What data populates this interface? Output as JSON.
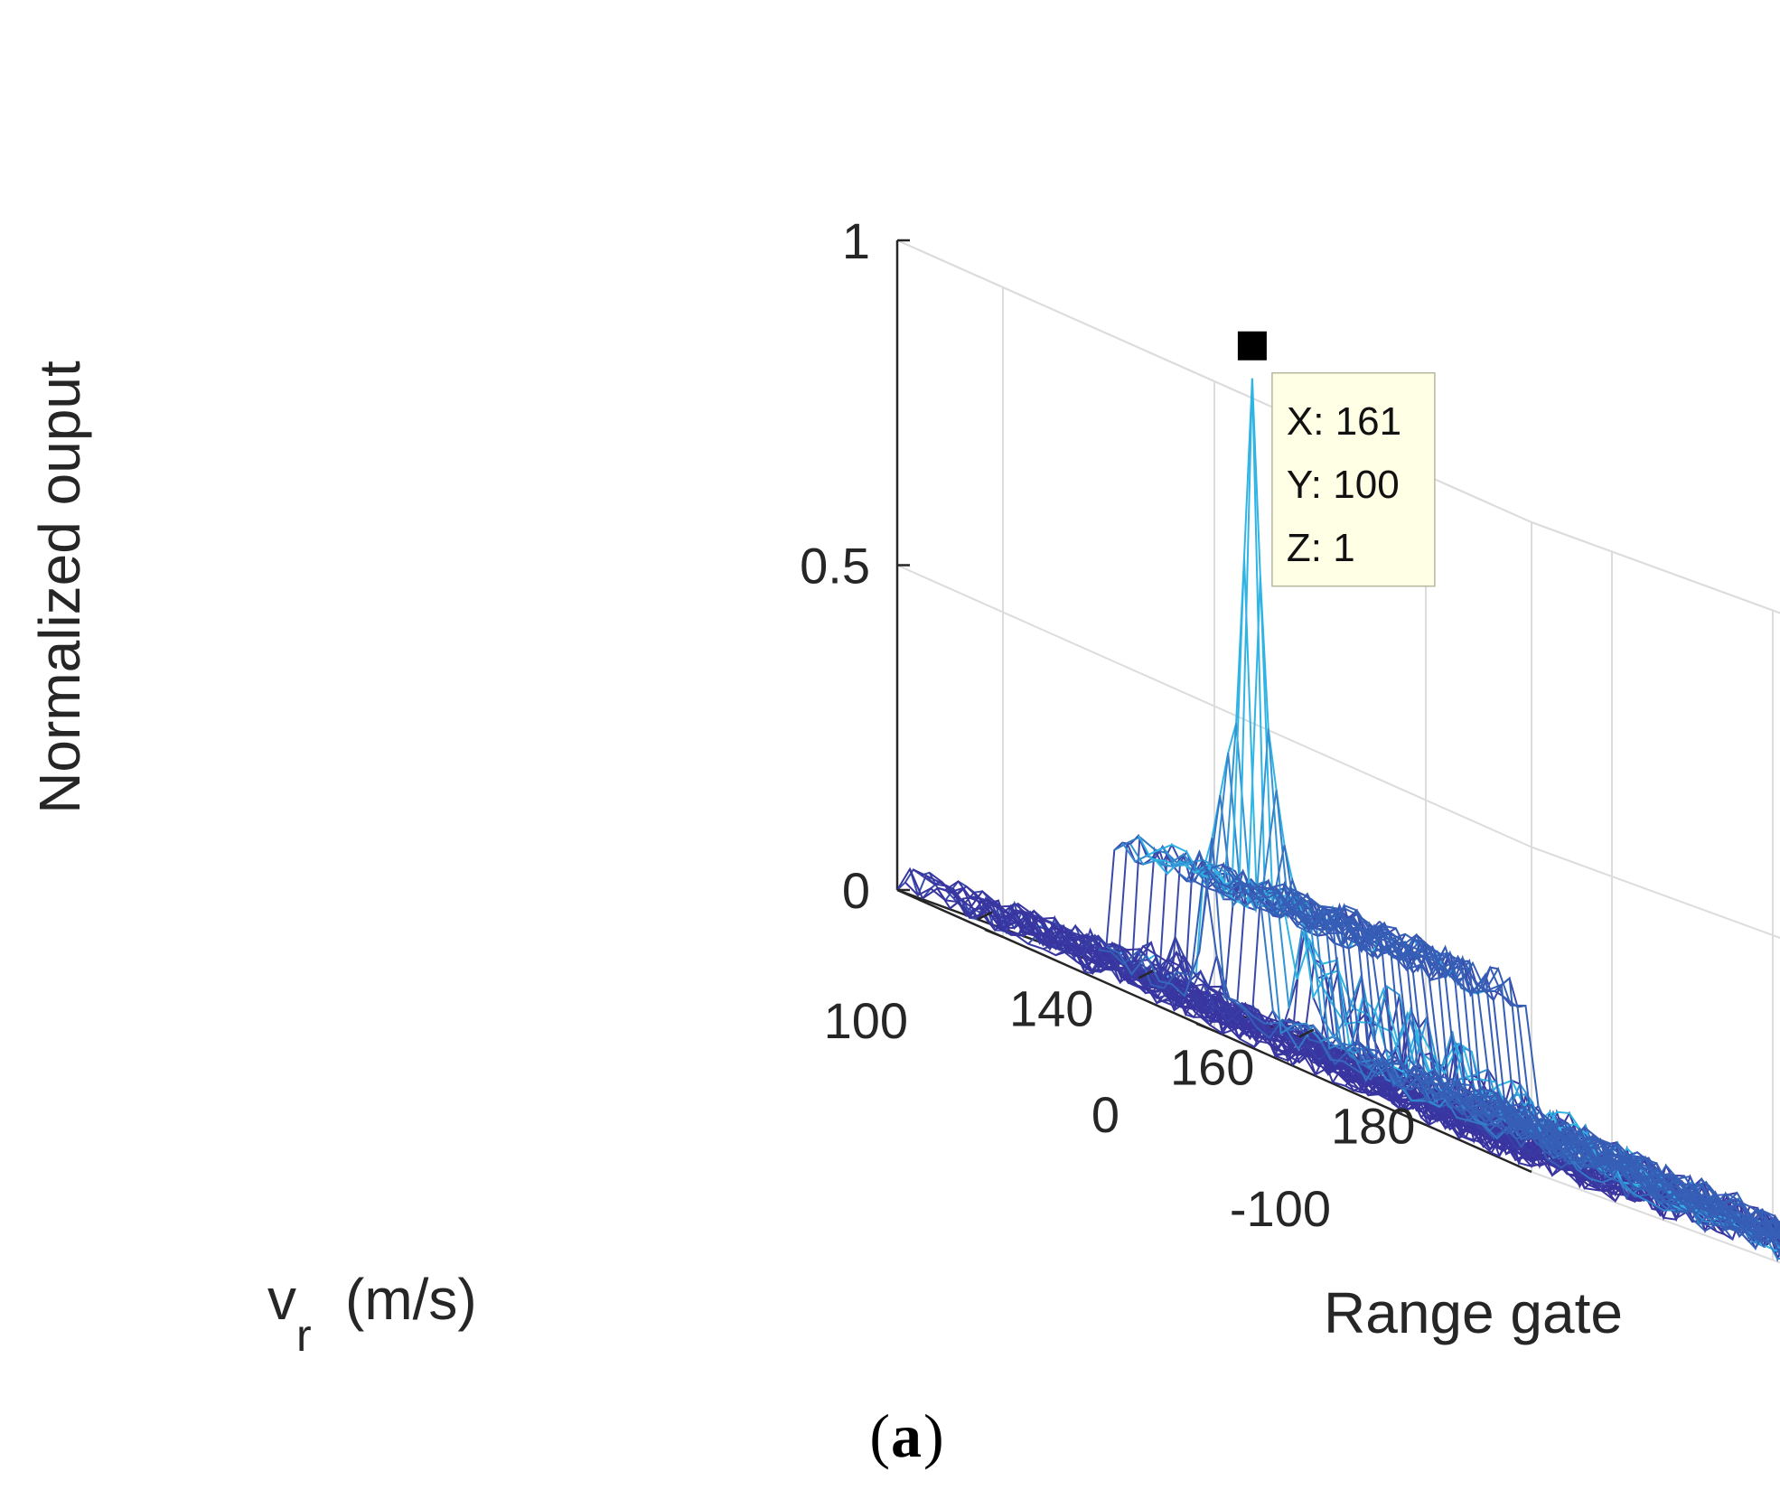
{
  "chart_data": {
    "type": "surface-mesh",
    "title": "",
    "caption": {
      "open": "(",
      "label": "a",
      "close": ")"
    },
    "xlabel": "Range gate",
    "ylabel_base": "v",
    "ylabel_sub": "r",
    "ylabel_units": "(m/s)",
    "zlabel": "Normalized ouput",
    "x_range": [
      130,
      190
    ],
    "y_range": [
      -150,
      150
    ],
    "z_range": [
      0,
      1
    ],
    "x_ticks": [
      140,
      160,
      180
    ],
    "x_tick_labels": [
      "140",
      "160",
      "180"
    ],
    "y_ticks": [
      -100,
      0,
      100
    ],
    "y_tick_labels": [
      "-100",
      "0",
      "100"
    ],
    "z_ticks": [
      0,
      0.5,
      1
    ],
    "z_tick_labels": [
      "0",
      "0.5",
      "1"
    ],
    "grid": true,
    "peak": {
      "x": 161,
      "y": 100,
      "z": 1
    },
    "datatip": {
      "x_text": "X: 161",
      "y_text": "Y: 100",
      "z_text": "Z: 1"
    },
    "features": {
      "sidelobe_peaks": [
        {
          "x": 160,
          "y": 100,
          "z": 0.72
        },
        {
          "x": 162,
          "y": 100,
          "z": 0.7
        },
        {
          "x": 159,
          "y": 100,
          "z": 0.46
        },
        {
          "x": 163,
          "y": 100,
          "z": 0.47
        },
        {
          "x": 158,
          "y": 100,
          "z": 0.41
        },
        {
          "x": 164,
          "y": 100,
          "z": 0.38
        },
        {
          "x": 157,
          "y": 100,
          "z": 0.34
        },
        {
          "x": 165,
          "y": 100,
          "z": 0.3
        },
        {
          "x": 156,
          "y": 100,
          "z": 0.27
        },
        {
          "x": 166,
          "y": 100,
          "z": 0.25
        },
        {
          "x": 155,
          "y": 100,
          "z": 0.22
        },
        {
          "x": 167,
          "y": 100,
          "z": 0.2
        }
      ],
      "range_ridge_level": 0.18,
      "doppler_ridge_level": 0.12,
      "background_plateau_level": 0.22,
      "noise_level": 0.05
    },
    "colors": {
      "mesh_low": "#3a2a9a",
      "mesh_high": "#30b4e4",
      "axis": "#262626",
      "grid": "#dcdcdc",
      "datatip_bg": "#ffffe6",
      "marker": "#000000"
    }
  }
}
